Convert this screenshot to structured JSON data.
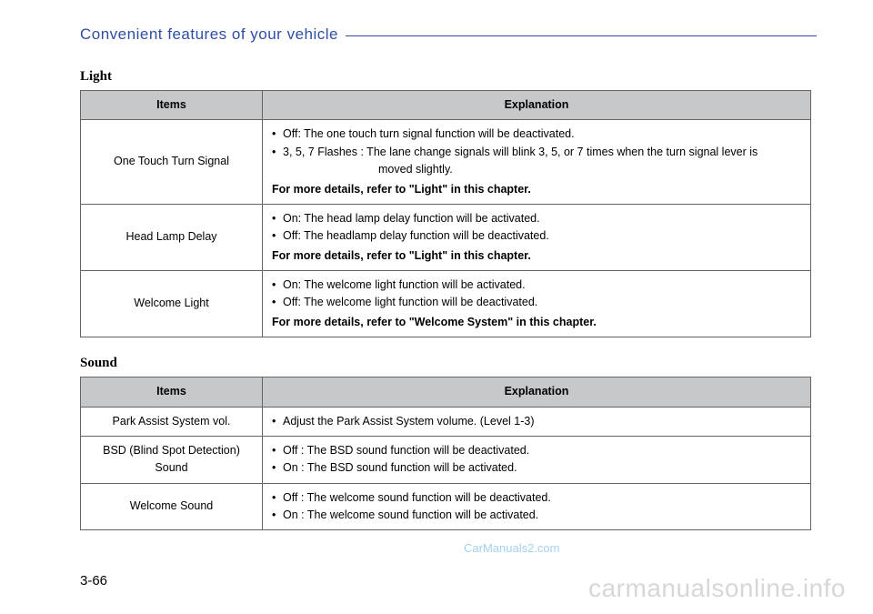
{
  "header": {
    "title": "Convenient features of your vehicle"
  },
  "light": {
    "heading": "Light",
    "columns": {
      "items": "Items",
      "explanation": "Explanation"
    },
    "rows": [
      {
        "item": "One Touch Turn Signal",
        "bullets": [
          "Off: The one touch turn signal function will be deactivated.",
          "3, 5, 7 Flashes : The lane change signals will blink 3, 5, or 7 times when the turn signal lever is"
        ],
        "cont": "moved slightly.",
        "note": "For more details, refer to \"Light\" in this chapter."
      },
      {
        "item": "Head Lamp Delay",
        "bullets": [
          "On: The head lamp delay function will be activated.",
          "Off: The headlamp delay function will be deactivated."
        ],
        "note": "For more details, refer to \"Light\" in this chapter."
      },
      {
        "item": "Welcome Light",
        "bullets": [
          "On: The welcome light function will be activated.",
          "Off: The welcome light function will be deactivated."
        ],
        "note": "For more details, refer to \"Welcome System\" in this chapter."
      }
    ]
  },
  "sound": {
    "heading": "Sound",
    "columns": {
      "items": "Items",
      "explanation": "Explanation"
    },
    "rows": [
      {
        "item": "Park Assist System vol.",
        "bullets": [
          "Adjust the Park Assist System volume. (Level 1-3)"
        ]
      },
      {
        "item": "BSD (Blind Spot Detection) Sound",
        "bullets": [
          "Off : The BSD sound function will be deactivated.",
          "On : The BSD sound function will be activated."
        ]
      },
      {
        "item": "Welcome Sound",
        "bullets": [
          "Off : The welcome sound function will be deactivated.",
          "On : The welcome sound function will be activated."
        ]
      }
    ]
  },
  "pageNumber": "3-66",
  "watermark": "carmanualsonline.info",
  "watermark2": "CarManuals2.com"
}
